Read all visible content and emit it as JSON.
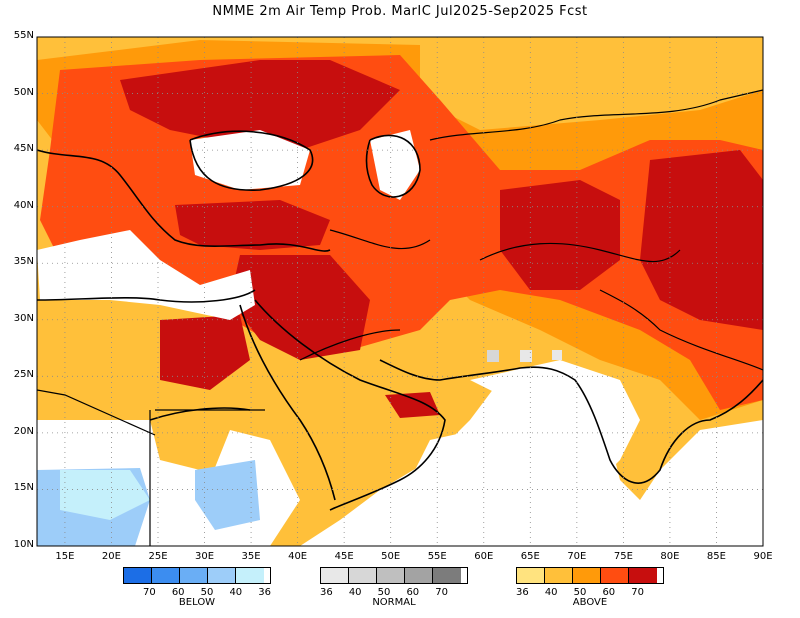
{
  "title": "NMME 2m Air Temp Prob. MarIC  Jul2025-Sep2025 Fcst",
  "map": {
    "lat_labels": [
      "55N",
      "50N",
      "45N",
      "40N",
      "35N",
      "30N",
      "25N",
      "20N",
      "15N",
      "10N"
    ],
    "lon_labels": [
      "15E",
      "20E",
      "25E",
      "30E",
      "35E",
      "40E",
      "45E",
      "50E",
      "55E",
      "60E",
      "65E",
      "70E",
      "75E",
      "80E",
      "85E",
      "90E"
    ],
    "lon_range": [
      12,
      90
    ],
    "lat_range": [
      10,
      55
    ],
    "grid": "dotted"
  },
  "legend": {
    "below": {
      "label": "BELOW",
      "ticks": [
        "70",
        "60",
        "50",
        "40",
        "36"
      ],
      "colors": [
        "#1c6ee6",
        "#3c8df0",
        "#6aaef5",
        "#9dcdf9",
        "#c5f0fb"
      ]
    },
    "normal": {
      "label": "NORMAL",
      "ticks": [
        "36",
        "40",
        "50",
        "60",
        "70"
      ],
      "colors": [
        "#e8e8e8",
        "#d7d7d7",
        "#bfbfbf",
        "#a3a3a3",
        "#7c7c7c"
      ]
    },
    "above": {
      "label": "ABOVE",
      "ticks": [
        "36",
        "40",
        "50",
        "60",
        "70"
      ],
      "colors": [
        "#ffe37f",
        "#ffc03a",
        "#ff9a0a",
        "#ff4d11",
        "#c70e0e"
      ]
    }
  }
}
